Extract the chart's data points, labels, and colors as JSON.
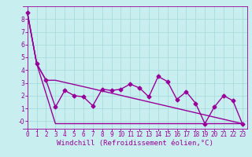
{
  "title": "",
  "xlabel": "Windchill (Refroidissement éolien,°C)",
  "ylabel": "",
  "bg_color": "#c8eef0",
  "line_color": "#990099",
  "grid_color": "#aadddd",
  "xlim": [
    -0.5,
    23.5
  ],
  "ylim": [
    -0.6,
    9.0
  ],
  "yticks": [
    0,
    1,
    2,
    3,
    4,
    5,
    6,
    7,
    8
  ],
  "ytick_labels": [
    "-0",
    "1",
    "2",
    "3",
    "4",
    "5",
    "6",
    "7",
    "8"
  ],
  "xticks": [
    0,
    1,
    2,
    3,
    4,
    5,
    6,
    7,
    8,
    9,
    10,
    11,
    12,
    13,
    14,
    15,
    16,
    17,
    18,
    19,
    20,
    21,
    22,
    23
  ],
  "series1_x": [
    0,
    1,
    2,
    3,
    4,
    5,
    6,
    7,
    8,
    9,
    10,
    11,
    12,
    13,
    14,
    15,
    16,
    17,
    18,
    19,
    20,
    21,
    22,
    23
  ],
  "series1_y": [
    8.5,
    4.5,
    3.2,
    1.1,
    2.4,
    2.0,
    1.9,
    1.2,
    2.5,
    2.4,
    2.5,
    2.9,
    2.6,
    1.9,
    3.5,
    3.1,
    1.7,
    2.3,
    1.4,
    -0.2,
    1.1,
    2.0,
    1.6,
    -0.2
  ],
  "series2_x": [
    0,
    1,
    2,
    3,
    6,
    23
  ],
  "series2_y": [
    8.5,
    4.5,
    3.2,
    3.2,
    2.7,
    -0.2
  ],
  "series3_x": [
    0,
    1,
    3,
    6,
    23
  ],
  "series3_y": [
    8.5,
    4.5,
    -0.2,
    -0.2,
    -0.2
  ],
  "marker": "D",
  "markersize": 2.5,
  "linewidth": 1.0,
  "font_family": "monospace",
  "xlabel_fontsize": 6.5,
  "tick_fontsize": 5.5
}
